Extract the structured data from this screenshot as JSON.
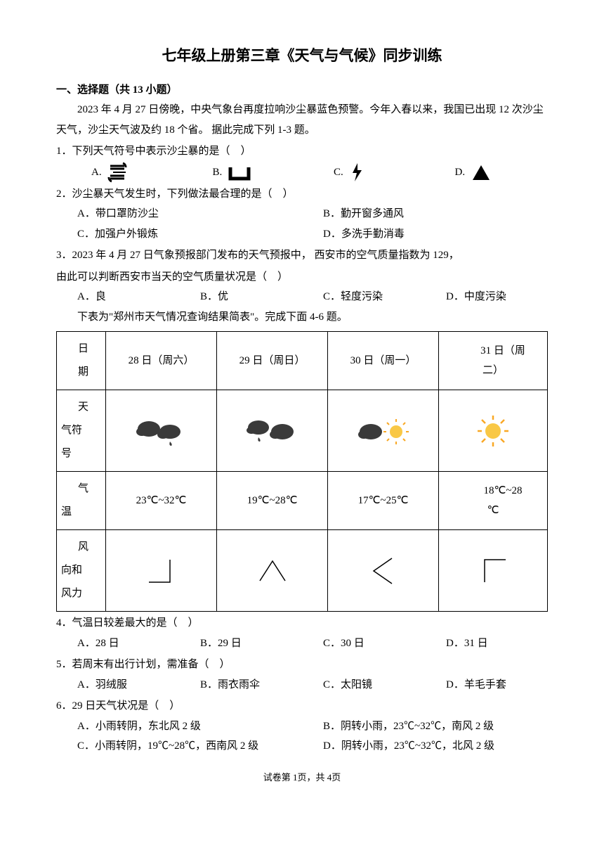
{
  "title": "七年级上册第三章《天气与气候》同步训练",
  "section1": "一、选择题（共 13 小题）",
  "passage1": "2023 年 4 月 27 日傍晚，中央气象台再度拉响沙尘暴蓝色预警。今年入春以来，我国已出现 12 次沙尘天气，沙尘天气波及约 18 个省。 据此完成下列 1-3 题。",
  "q1": {
    "stem": "1．下列天气符号中表示沙尘暴的是（　）",
    "optA": "A.",
    "optB": "B.",
    "optC": "C.",
    "optD": "D."
  },
  "q2": {
    "stem": "2．沙尘暴天气发生时，下列做法最合理的是（　）",
    "optA": "A．带口罩防沙尘",
    "optB": "B．勤开窗多通风",
    "optC": "C．加强户外锻炼",
    "optD": "D．多洗手勤消毒"
  },
  "q3": {
    "stem1": "3．2023 年 4 月 27 日气象预报部门发布的天气预报中， 西安市的空气质量指数为 129，",
    "stem2": "由此可以判断西安市当天的空气质量状况是（　）",
    "optA": "A．良",
    "optB": "B．优",
    "optC": "C．轻度污染",
    "optD": "D．中度污染"
  },
  "passage2": "下表为\"郑州市天气情况查询结果简表\"。完成下面 4-6 题。",
  "table": {
    "h_date": "日期",
    "h_symbol": "天气符号",
    "h_temp": "气温",
    "h_wind": "风向和风力",
    "d28": "28 日（周六）",
    "d29": "29 日（周日）",
    "d30": "30 日（周一）",
    "d31_a": "31 日（周",
    "d31_b": "二）",
    "t28": "23℃~32℃",
    "t29": "19℃~28℃",
    "t30": "17℃~25℃",
    "t31_a": "18℃~28",
    "t31_b": "℃"
  },
  "q4": {
    "stem": "4．气温日较差最大的是（　）",
    "optA": "A．28 日",
    "optB": "B．29 日",
    "optC": "C．30 日",
    "optD": "D．31 日"
  },
  "q5": {
    "stem": "5．若周末有出行计划，需准备（　）",
    "optA": "A．羽绒服",
    "optB": "B．雨衣雨伞",
    "optC": "C．太阳镜",
    "optD": "D．羊毛手套"
  },
  "q6": {
    "stem": "6．29 日天气状况是（　）",
    "optA": "A．小雨转阴，东北风 2 级",
    "optB": "B．阴转小雨，23℃~32℃，南风 2 级",
    "optC": "C．小雨转阴，19℃~28℃，西南风 2 级",
    "optD": "D．阴转小雨，23℃~32℃，北风 2 级"
  },
  "footer": "试卷第 1页，共 4页",
  "colors": {
    "cloud": "#3a3a3a",
    "sun_fill": "#f9c846",
    "sun_stroke": "#f9a825"
  }
}
